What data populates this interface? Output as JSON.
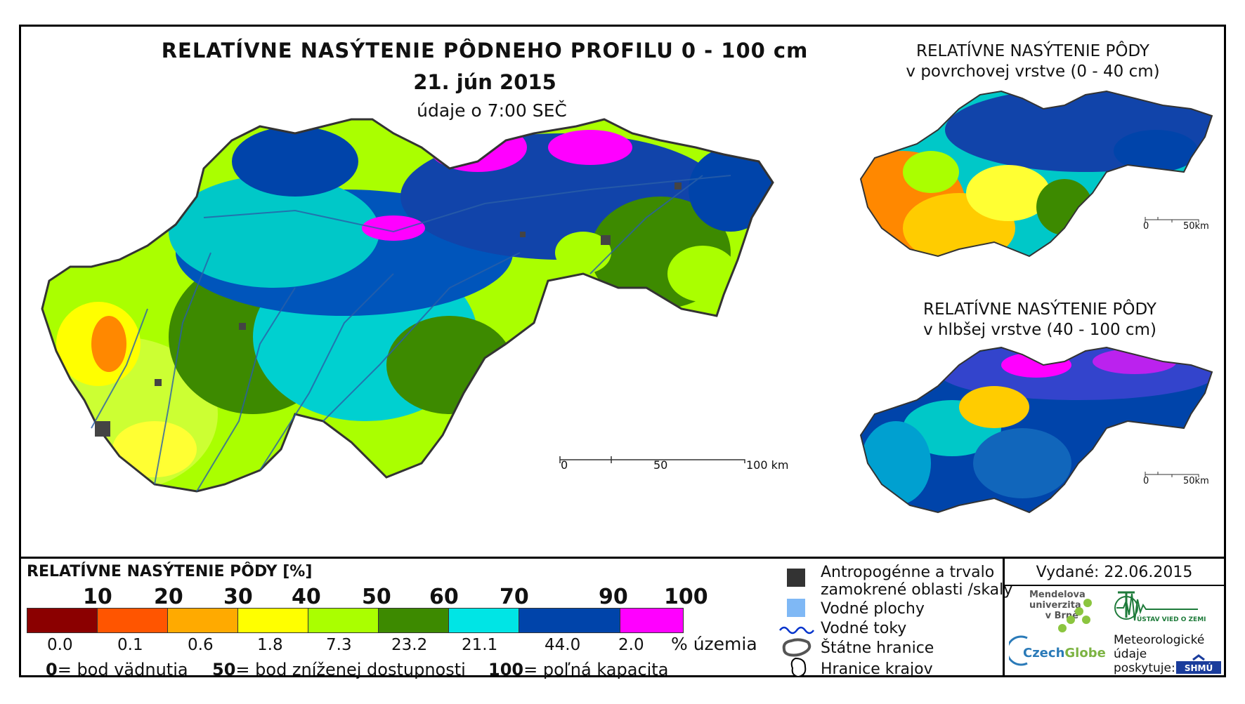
{
  "header": {
    "title": "RELATÍVNE NASÝTENIE PÔDNEHO PROFILU 0 - 100 cm",
    "date": "21. jún 2015",
    "time_note": "údaje o 7:00 SEČ"
  },
  "inset_top": {
    "title_line1": "RELATÍVNE NASÝTENIE PÔDY",
    "title_line2": "v povrchovej vrstve (0 - 40 cm)",
    "scale_zero": "0",
    "scale_end": "50km"
  },
  "inset_bottom": {
    "title_line1": "RELATÍVNE NASÝTENIE PÔDY",
    "title_line2": "v hlbšej vrstve (40 - 100 cm)",
    "scale_zero": "0",
    "scale_end": "50km"
  },
  "main_scale": {
    "zero": "0",
    "mid": "50",
    "end": "100 km"
  },
  "legend": {
    "title": "RELATÍVNE NASÝTENIE PÔDY [%]",
    "thresholds": [
      "10",
      "20",
      "30",
      "40",
      "50",
      "60",
      "70",
      "90",
      "100"
    ],
    "classes": [
      {
        "color": "#8b0000",
        "share": "0.0"
      },
      {
        "color": "#ff5500",
        "share": "0.1"
      },
      {
        "color": "#ffaa00",
        "share": "0.6"
      },
      {
        "color": "#ffff00",
        "share": "1.8"
      },
      {
        "color": "#aaff00",
        "share": "7.3"
      },
      {
        "color": "#3d8a00",
        "share": "23.2"
      },
      {
        "color": "#00e5e5",
        "share": "21.1"
      },
      {
        "color": "#0044aa",
        "share": "44.0"
      },
      {
        "color": "#ff00ff",
        "share": "2.0"
      }
    ],
    "share_unit": "% územia",
    "note_0_value": "0",
    "note_0_label": "= bod vädnutia",
    "note_50_value": "50",
    "note_50_label": "= bod zníženej dostupnosti",
    "note_100_value": "100",
    "note_100_label": "= poľná kapacita"
  },
  "symbols": {
    "anthropogenic_line1": "Antropogénne a trvalo",
    "anthropogenic_line2": "zamokrené oblasti /skaly",
    "water_areas": "Vodné plochy",
    "rivers": "Vodné toky",
    "state_border": "Štátne hranice",
    "regions_border": "Hranice krajov"
  },
  "credits": {
    "issued": "Vydané: 22.06.2015",
    "mendel_line1": "Mendelova",
    "mendel_line2": "univerzita",
    "mendel_line3": "v Brně",
    "czechglobe_a": "Czech",
    "czechglobe_b": "Globe",
    "uvoz": "ÚSTAV VIED O ZEMI",
    "met_line1": "Meteorologické",
    "met_line2": "údaje",
    "met_line3": "poskytuje:",
    "shmu": "SHMÚ"
  }
}
